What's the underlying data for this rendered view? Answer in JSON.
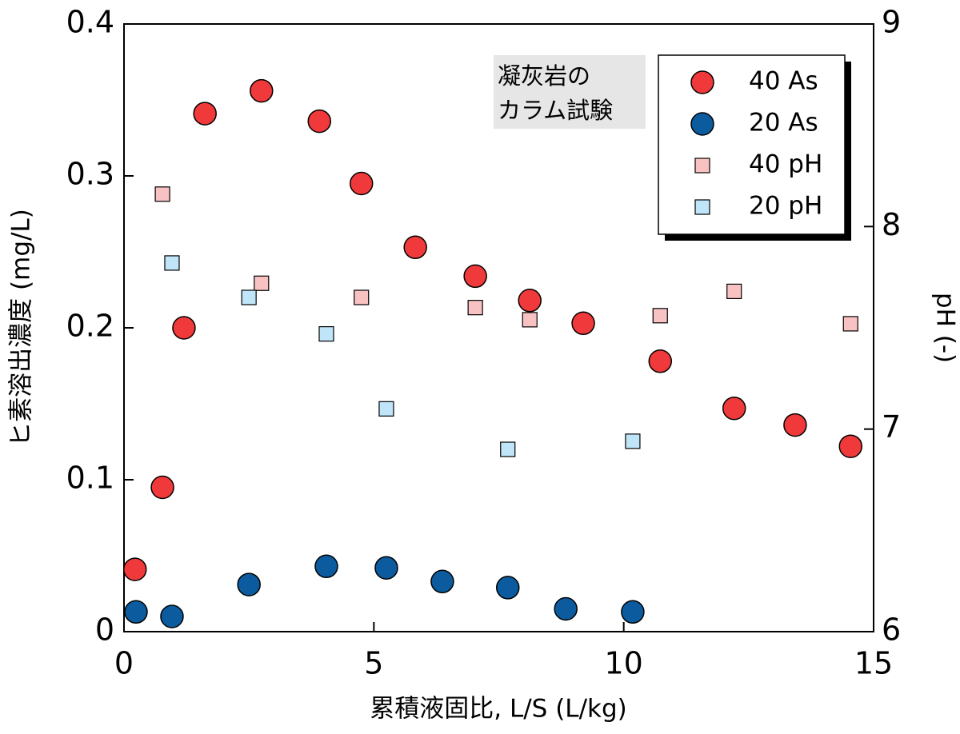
{
  "chart_data": {
    "type": "scatter",
    "xlabel": "累積液固比, L/S (L/kg)",
    "ylabel": "ヒ素溶出濃度 (mg/L)",
    "y2label": "pH (-)",
    "annotation": [
      "凝灰岩の",
      "カラム試験"
    ],
    "xlim": [
      0,
      15
    ],
    "xticks": [
      0,
      5,
      10,
      15
    ],
    "ylim": [
      0,
      0.4
    ],
    "yticks": [
      0,
      0.1,
      0.2,
      0.3,
      0.4
    ],
    "y2lim": [
      6,
      9
    ],
    "y2ticks": [
      6,
      7,
      8,
      9
    ],
    "legend": "upper right",
    "series": [
      {
        "name": "40 As",
        "color": "#f0393a",
        "marker": "circle",
        "x": [
          0.22,
          0.77,
          1.2,
          1.62,
          2.75,
          3.91,
          4.75,
          5.83,
          7.03,
          8.12,
          9.19,
          10.73,
          12.21,
          13.43,
          14.54
        ],
        "values": [
          0.041,
          0.095,
          0.2,
          0.341,
          0.356,
          0.336,
          0.295,
          0.253,
          0.234,
          0.218,
          0.203,
          0.178,
          0.147,
          0.136,
          0.122
        ]
      },
      {
        "name": "20 As",
        "color": "#0b5b9e",
        "marker": "circle",
        "x": [
          0.24,
          0.96,
          2.5,
          4.05,
          5.25,
          6.37,
          7.68,
          8.84,
          10.18
        ],
        "values": [
          0.013,
          0.01,
          0.031,
          0.043,
          0.042,
          0.033,
          0.029,
          0.015,
          0.013
        ]
      },
      {
        "name": "40 pH",
        "color": "#f9c2c2",
        "marker": "square",
        "axis": "y2",
        "x": [
          0.77,
          2.75,
          4.75,
          7.03,
          8.12,
          10.73,
          12.21,
          14.54
        ],
        "values": [
          8.16,
          7.72,
          7.65,
          7.6,
          7.54,
          7.56,
          7.68,
          7.52
        ]
      },
      {
        "name": "20 pH",
        "color": "#c0e4f8",
        "marker": "square",
        "axis": "y2",
        "x": [
          0.96,
          2.5,
          4.05,
          5.25,
          7.68,
          10.18
        ],
        "values": [
          7.82,
          7.65,
          7.47,
          7.1,
          6.9,
          6.94
        ]
      }
    ]
  }
}
